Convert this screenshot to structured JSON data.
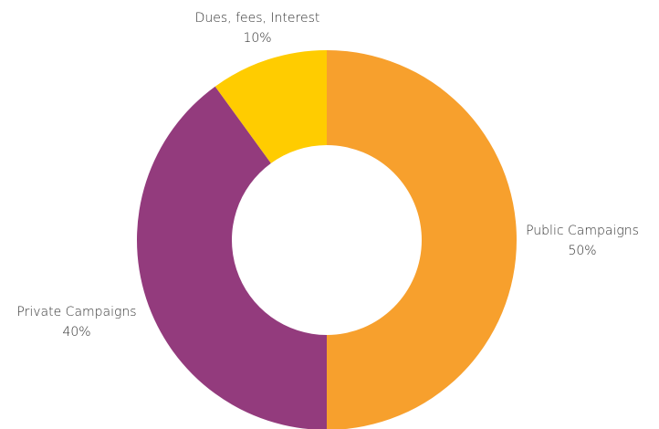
{
  "chart_data": {
    "type": "pie",
    "donut": true,
    "start_angle_deg": 0,
    "direction": "clockwise",
    "slices": [
      {
        "name": "Public Campaigns",
        "value": 50,
        "percent_label": "50%",
        "color": "#F7A02D"
      },
      {
        "name": "Private Campaigns",
        "value": 40,
        "percent_label": "40%",
        "color": "#933B7D"
      },
      {
        "name": "Dues, fees, Interest",
        "value": 10,
        "percent_label": "10%",
        "color": "#FFCC00"
      }
    ]
  }
}
